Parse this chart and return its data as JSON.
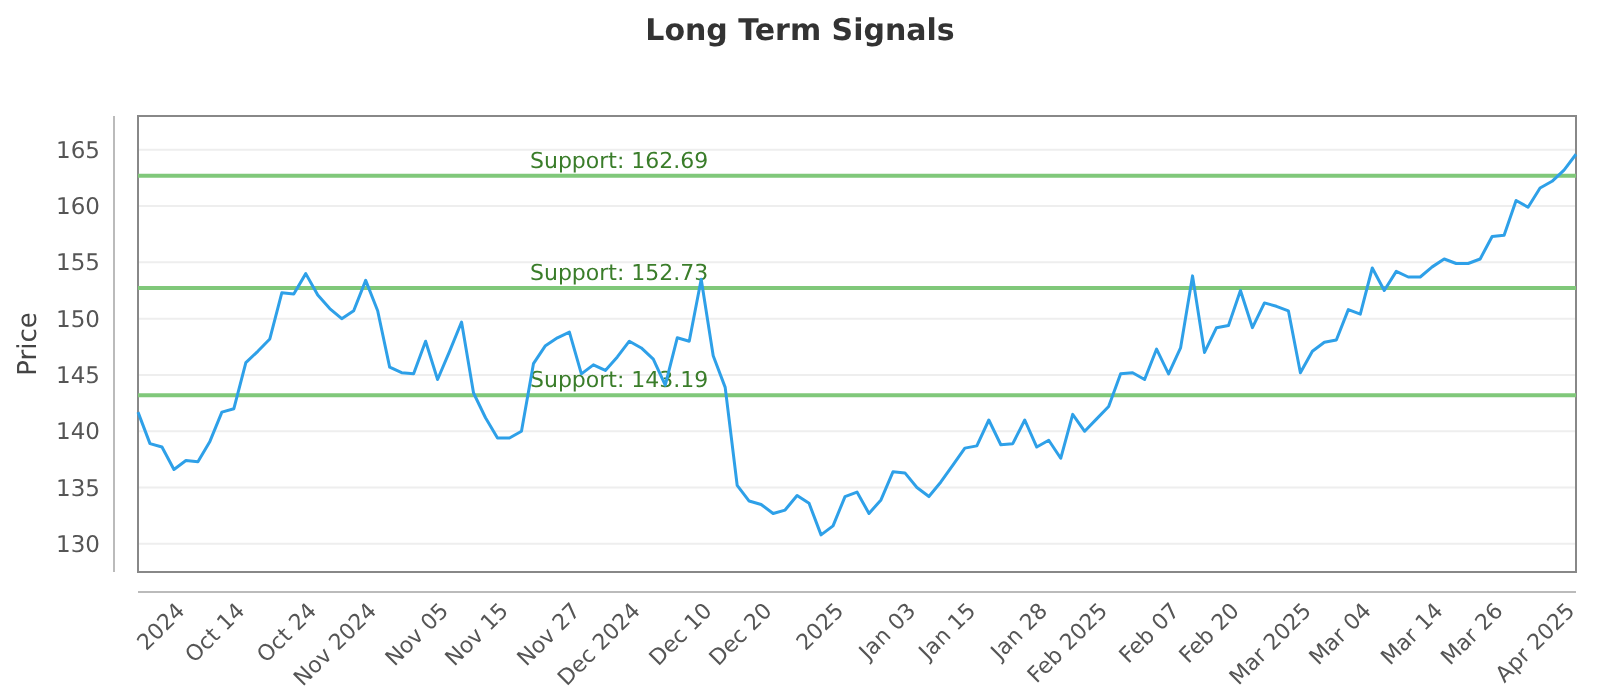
{
  "chart_data": {
    "type": "line",
    "title": "Long Term Signals",
    "ylabel": "Price",
    "ylim": [
      127.5,
      168
    ],
    "categories": [
      null,
      null,
      null,
      null,
      "2024",
      null,
      null,
      null,
      null,
      "Oct 14",
      null,
      null,
      null,
      null,
      null,
      "Oct 24",
      null,
      null,
      null,
      null,
      "Nov 2024",
      null,
      null,
      null,
      null,
      null,
      "Nov 05",
      null,
      null,
      null,
      null,
      "Nov 15",
      null,
      null,
      null,
      null,
      null,
      "Nov 27",
      null,
      null,
      null,
      null,
      "Dec 2024",
      null,
      null,
      null,
      null,
      null,
      "Dec 10",
      null,
      null,
      null,
      null,
      "Dec 20",
      null,
      null,
      null,
      null,
      null,
      "2025",
      null,
      null,
      null,
      null,
      null,
      "Jan 03",
      null,
      null,
      null,
      null,
      "Jan 15",
      null,
      null,
      null,
      null,
      null,
      "Jan 28",
      null,
      null,
      null,
      null,
      "Feb 2025",
      null,
      null,
      null,
      null,
      null,
      "Feb 07",
      null,
      null,
      null,
      null,
      "Feb 20",
      null,
      null,
      null,
      null,
      null,
      "Mar 2025",
      null,
      null,
      null,
      null,
      "Mar 04",
      null,
      null,
      null,
      null,
      null,
      "Mar 14",
      null,
      null,
      null,
      null,
      "Mar 26",
      null,
      null,
      null,
      null,
      null,
      "Apr 2025"
    ],
    "yticks": [
      130,
      135,
      140,
      145,
      150,
      155,
      160,
      165
    ],
    "grid": "y",
    "marker": "none",
    "line_style": "solid",
    "series": [
      {
        "color": "#2ea0e8",
        "values": [
          141.7,
          138.9,
          138.6,
          136.6,
          137.4,
          137.3,
          139.1,
          141.7,
          142,
          146.1,
          147.1,
          148.2,
          152.3,
          152.2,
          154,
          152.1,
          150.9,
          150,
          150.7,
          153.4,
          150.7,
          145.7,
          145.2,
          145.1,
          148,
          144.6,
          147.1,
          149.7,
          143.4,
          141.2,
          139.4,
          139.4,
          140,
          146,
          147.6,
          148.3,
          148.8,
          145.1,
          145.9,
          145.4,
          146.6,
          148,
          147.4,
          146.4,
          144.1,
          148.3,
          148,
          153.5,
          146.7,
          143.9,
          135.2,
          133.8,
          133.5,
          132.7,
          133,
          134.3,
          133.6,
          130.8,
          131.6,
          134.2,
          134.6,
          132.7,
          133.9,
          136.4,
          136.3,
          135,
          134.2,
          135.5,
          137,
          138.5,
          138.7,
          141,
          138.8,
          138.9,
          141,
          138.6,
          139.2,
          137.6,
          141.5,
          140,
          141.1,
          142.2,
          145.1,
          145.2,
          144.6,
          147.3,
          145.1,
          147.4,
          153.8,
          147,
          149.2,
          149.4,
          152.5,
          149.2,
          151.4,
          151.1,
          150.7,
          145.2,
          147.1,
          147.9,
          148.1,
          150.8,
          150.4,
          154.5,
          152.5,
          154.2,
          153.7,
          153.7,
          154.6,
          155.3,
          154.9,
          154.9,
          155.3,
          157.3,
          157.4,
          160.5,
          159.9,
          161.6,
          162.2,
          163.2,
          164.6
        ]
      }
    ],
    "ref_lines": [
      {
        "axis": "y",
        "value": 162.69,
        "label": "Support: 162.69",
        "color": "#80c87a"
      },
      {
        "axis": "y",
        "value": 152.73,
        "label": "Support: 152.73",
        "color": "#80c87a"
      },
      {
        "axis": "y",
        "value": 143.19,
        "label": "Support: 143.19",
        "color": "#80c87a"
      }
    ]
  }
}
